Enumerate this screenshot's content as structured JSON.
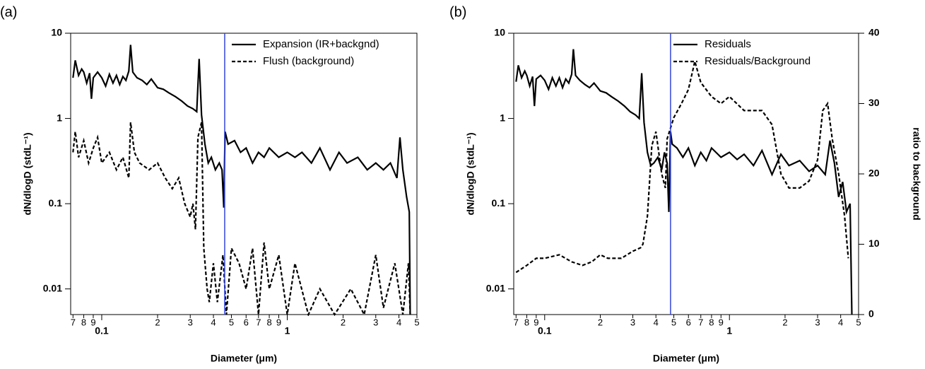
{
  "chart_data": [
    {
      "type": "line",
      "panel_label": "(a)",
      "xlabel": "Diameter (μm)",
      "ylabel": "dN/dlogD (stdL⁻¹)",
      "xscale": "log",
      "yscale": "log",
      "xlim": [
        0.068,
        5
      ],
      "ylim": [
        0.005,
        10
      ],
      "xticks": [
        {
          "value": 0.07,
          "label": "7"
        },
        {
          "value": 0.08,
          "label": "8"
        },
        {
          "value": 0.09,
          "label": "9"
        },
        0.1,
        {
          "value": 0.2,
          "label": "2"
        },
        {
          "value": 0.3,
          "label": "3"
        },
        {
          "value": 0.4,
          "label": "4"
        },
        {
          "value": 0.5,
          "label": "5"
        },
        {
          "value": 0.6,
          "label": "6"
        },
        {
          "value": 0.7,
          "label": "7"
        },
        {
          "value": 0.8,
          "label": "8"
        },
        {
          "value": 0.9,
          "label": "9"
        },
        1,
        {
          "value": 2,
          "label": "2"
        },
        {
          "value": 3,
          "label": "3"
        },
        {
          "value": 4,
          "label": "4"
        },
        {
          "value": 5,
          "label": "5"
        }
      ],
      "yticks": [
        0.01,
        0.1,
        1,
        10
      ],
      "vline": {
        "value": 0.46,
        "color": "#3344dd"
      },
      "legend": "upper right",
      "series": [
        {
          "name": "Expansion (IR+backgnd)",
          "color": "#000000",
          "dash": false,
          "x": [
            0.07,
            0.072,
            0.075,
            0.078,
            0.08,
            0.083,
            0.086,
            0.088,
            0.09,
            0.095,
            0.1,
            0.105,
            0.11,
            0.115,
            0.12,
            0.125,
            0.13,
            0.135,
            0.14,
            0.143,
            0.147,
            0.155,
            0.165,
            0.175,
            0.185,
            0.2,
            0.215,
            0.23,
            0.25,
            0.27,
            0.29,
            0.31,
            0.325,
            0.335,
            0.345,
            0.36,
            0.375,
            0.39,
            0.41,
            0.43,
            0.445,
            0.455,
            0.462,
            0.48,
            0.52,
            0.56,
            0.6,
            0.65,
            0.7,
            0.75,
            0.8,
            0.9,
            1.0,
            1.1,
            1.2,
            1.35,
            1.5,
            1.7,
            1.9,
            2.1,
            2.4,
            2.7,
            3.0,
            3.3,
            3.6,
            3.9,
            4.05,
            4.2,
            4.4,
            4.55,
            4.6
          ],
          "values": [
            3.0,
            4.8,
            3.2,
            3.8,
            3.5,
            2.6,
            3.4,
            1.7,
            3.0,
            3.5,
            3.0,
            2.4,
            3.3,
            2.6,
            3.2,
            2.5,
            3.1,
            2.8,
            3.6,
            7.3,
            3.5,
            3.0,
            2.8,
            2.5,
            2.9,
            2.3,
            2.2,
            2.0,
            1.8,
            1.6,
            1.4,
            1.3,
            1.2,
            5.0,
            1.1,
            0.5,
            0.3,
            0.35,
            0.25,
            0.3,
            0.25,
            0.09,
            0.7,
            0.5,
            0.55,
            0.4,
            0.45,
            0.3,
            0.4,
            0.35,
            0.45,
            0.35,
            0.4,
            0.35,
            0.4,
            0.3,
            0.45,
            0.25,
            0.4,
            0.3,
            0.35,
            0.25,
            0.3,
            0.25,
            0.3,
            0.2,
            0.6,
            0.25,
            0.12,
            0.08,
            0.005
          ]
        },
        {
          "name": "Flush (background)",
          "color": "#000000",
          "dash": true,
          "x": [
            0.07,
            0.072,
            0.075,
            0.08,
            0.085,
            0.09,
            0.095,
            0.1,
            0.11,
            0.12,
            0.13,
            0.14,
            0.143,
            0.15,
            0.16,
            0.18,
            0.2,
            0.22,
            0.24,
            0.26,
            0.28,
            0.3,
            0.31,
            0.32,
            0.33,
            0.345,
            0.355,
            0.37,
            0.38,
            0.4,
            0.42,
            0.45,
            0.47,
            0.5,
            0.55,
            0.6,
            0.65,
            0.7,
            0.75,
            0.8,
            0.9,
            1.0,
            1.1,
            1.3,
            1.5,
            1.8,
            2.2,
            2.6,
            3.0,
            3.3,
            3.8,
            4.2,
            4.5,
            4.6
          ],
          "values": [
            0.4,
            0.7,
            0.35,
            0.55,
            0.3,
            0.45,
            0.6,
            0.3,
            0.4,
            0.25,
            0.35,
            0.2,
            0.9,
            0.4,
            0.3,
            0.25,
            0.3,
            0.2,
            0.15,
            0.2,
            0.1,
            0.07,
            0.1,
            0.05,
            0.6,
            0.9,
            0.03,
            0.01,
            0.007,
            0.02,
            0.007,
            0.025,
            0.005,
            0.03,
            0.02,
            0.01,
            0.03,
            0.005,
            0.035,
            0.01,
            0.025,
            0.005,
            0.02,
            0.005,
            0.01,
            0.005,
            0.01,
            0.005,
            0.025,
            0.006,
            0.02,
            0.005,
            0.02,
            0.005
          ]
        }
      ]
    },
    {
      "type": "line",
      "panel_label": "(b)",
      "xlabel": "Diameter (μm)",
      "ylabel": "dN/dlogD (stdL⁻¹)",
      "y2label": "ratio to background",
      "xscale": "log",
      "yscale": "log",
      "xlim": [
        0.068,
        5
      ],
      "ylim": [
        0.005,
        10
      ],
      "y2lim": [
        0,
        40
      ],
      "xticks": [
        {
          "value": 0.07,
          "label": "7"
        },
        {
          "value": 0.08,
          "label": "8"
        },
        {
          "value": 0.09,
          "label": "9"
        },
        0.1,
        {
          "value": 0.2,
          "label": "2"
        },
        {
          "value": 0.3,
          "label": "3"
        },
        {
          "value": 0.4,
          "label": "4"
        },
        {
          "value": 0.5,
          "label": "5"
        },
        {
          "value": 0.6,
          "label": "6"
        },
        {
          "value": 0.7,
          "label": "7"
        },
        {
          "value": 0.8,
          "label": "8"
        },
        {
          "value": 0.9,
          "label": "9"
        },
        1,
        {
          "value": 2,
          "label": "2"
        },
        {
          "value": 3,
          "label": "3"
        },
        {
          "value": 4,
          "label": "4"
        },
        {
          "value": 5,
          "label": "5"
        }
      ],
      "yticks": [
        0.01,
        0.1,
        1,
        10
      ],
      "y2ticks": [
        0,
        10,
        20,
        30,
        40
      ],
      "vline": {
        "value": 0.48,
        "color": "#3344dd"
      },
      "legend": "upper right",
      "series": [
        {
          "name": "Residuals",
          "color": "#000000",
          "dash": false,
          "x": [
            0.07,
            0.072,
            0.075,
            0.078,
            0.08,
            0.083,
            0.086,
            0.088,
            0.09,
            0.095,
            0.1,
            0.105,
            0.11,
            0.115,
            0.12,
            0.125,
            0.13,
            0.135,
            0.14,
            0.143,
            0.147,
            0.155,
            0.165,
            0.175,
            0.185,
            0.2,
            0.215,
            0.23,
            0.25,
            0.27,
            0.29,
            0.31,
            0.325,
            0.335,
            0.345,
            0.36,
            0.375,
            0.39,
            0.41,
            0.43,
            0.445,
            0.46,
            0.47,
            0.48,
            0.49,
            0.52,
            0.56,
            0.6,
            0.65,
            0.7,
            0.75,
            0.8,
            0.9,
            1.0,
            1.1,
            1.2,
            1.35,
            1.5,
            1.7,
            1.9,
            2.1,
            2.4,
            2.7,
            3.0,
            3.3,
            3.5,
            3.7,
            3.9,
            4.1,
            4.3,
            4.5,
            4.6
          ],
          "values": [
            2.7,
            4.2,
            3.0,
            3.6,
            3.2,
            2.4,
            3.1,
            1.4,
            2.9,
            3.2,
            2.8,
            2.2,
            3.0,
            2.4,
            3.0,
            2.3,
            2.9,
            2.6,
            3.3,
            6.5,
            3.2,
            2.8,
            2.5,
            2.3,
            2.6,
            2.1,
            2.0,
            1.8,
            1.6,
            1.4,
            1.2,
            1.1,
            1.0,
            3.4,
            0.9,
            0.4,
            0.28,
            0.3,
            0.35,
            0.25,
            0.4,
            0.3,
            0.08,
            0.7,
            0.5,
            0.45,
            0.35,
            0.45,
            0.28,
            0.4,
            0.32,
            0.45,
            0.35,
            0.4,
            0.33,
            0.38,
            0.28,
            0.42,
            0.22,
            0.38,
            0.28,
            0.32,
            0.24,
            0.28,
            0.22,
            0.55,
            0.3,
            0.12,
            0.18,
            0.08,
            0.1,
            0.005
          ]
        },
        {
          "name": "Residuals/Background",
          "color": "#000000",
          "dash": true,
          "axis": "y2",
          "x": [
            0.07,
            0.08,
            0.09,
            0.1,
            0.12,
            0.14,
            0.16,
            0.18,
            0.2,
            0.22,
            0.26,
            0.3,
            0.33,
            0.34,
            0.36,
            0.38,
            0.4,
            0.43,
            0.45,
            0.46,
            0.5,
            0.55,
            0.6,
            0.65,
            0.7,
            0.8,
            0.9,
            1.0,
            1.2,
            1.5,
            1.7,
            1.9,
            2.1,
            2.4,
            2.7,
            3.0,
            3.2,
            3.4,
            3.6,
            3.9,
            4.2,
            4.4
          ],
          "values": [
            6,
            7,
            8,
            8,
            8.5,
            7.5,
            7,
            7.5,
            8.5,
            8,
            8,
            9,
            9.5,
            10,
            14,
            24,
            26,
            20,
            18,
            25,
            28,
            30,
            32,
            36,
            33,
            31,
            30,
            31,
            29,
            29,
            27,
            20,
            18,
            18,
            19,
            22,
            29,
            30,
            25,
            20,
            14,
            8
          ]
        }
      ]
    }
  ]
}
